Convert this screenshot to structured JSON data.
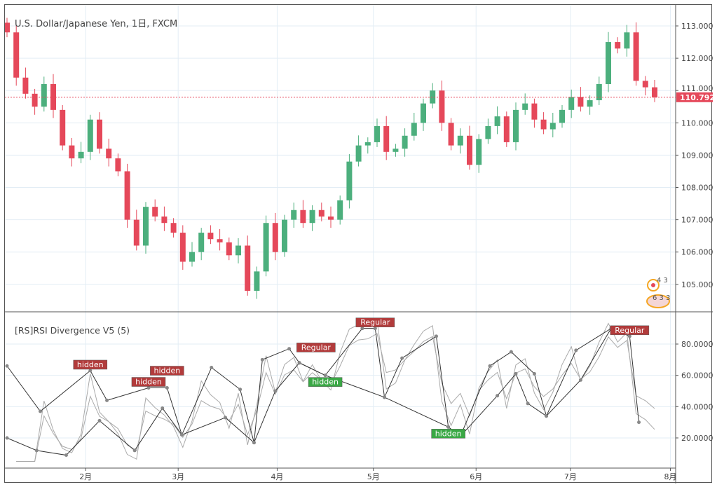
{
  "header": {
    "title": "U.S. Dollar/Japanese Yen, 1日, FXCM"
  },
  "indicator": {
    "title": "[RS]RSI Divergence V5 (5)"
  },
  "price_axis": {
    "ticks": [
      "113.000",
      "112.000",
      "111.000",
      "110.000",
      "109.000",
      "108.000",
      "107.000",
      "106.000",
      "105.000"
    ],
    "tick_values": [
      113,
      112,
      111,
      110,
      109,
      108,
      107,
      106,
      105
    ],
    "last_price": "110.792",
    "last_value": 110.792
  },
  "rsi_axis": {
    "ticks": [
      "80.0000",
      "60.0000",
      "40.0000",
      "20.0000"
    ],
    "tick_values": [
      80,
      60,
      40,
      20
    ]
  },
  "time_axis": {
    "labels": [
      "2月",
      "3月",
      "4月",
      "5月",
      "6月",
      "7月",
      "8月"
    ],
    "bar_index": [
      8.5,
      18.5,
      29.2,
      39.6,
      50.7,
      60.9,
      71.7
    ]
  },
  "events_badge": {
    "count_top": "4 3",
    "count_bottom": "6 3 3"
  },
  "colors": {
    "up": "#4caf7d",
    "down": "#e5485a",
    "price_line": "#e5485a",
    "rsi": "#aaaaaa",
    "div": "#333333",
    "regular": "#b23b3b",
    "hidden_bull": "#3aa845"
  },
  "chart_data": {
    "type": "candlestick",
    "first_open": 113.1,
    "closes": [
      112.8,
      111.4,
      110.9,
      110.5,
      111.2,
      110.4,
      109.3,
      108.9,
      109.1,
      110.1,
      109.2,
      108.9,
      108.5,
      107.0,
      106.2,
      107.4,
      107.1,
      106.9,
      106.6,
      105.7,
      106.0,
      106.6,
      106.4,
      106.3,
      105.9,
      106.2,
      104.8,
      105.4,
      106.9,
      106.0,
      107.0,
      107.3,
      106.9,
      107.3,
      107.1,
      107.0,
      107.6,
      108.8,
      109.3,
      109.4,
      109.9,
      109.1,
      109.2,
      109.6,
      110.0,
      110.6,
      111.0,
      110.0,
      109.3,
      109.6,
      108.7,
      109.5,
      109.9,
      110.2,
      109.4,
      110.4,
      110.6,
      110.1,
      109.8,
      110.0,
      110.4,
      110.8,
      110.5,
      110.7,
      111.2,
      112.5,
      112.3,
      112.8,
      111.3,
      111.1,
      110.79
    ],
    "ylim": [
      104.3,
      113.3
    ],
    "rsi_ylim": [
      2,
      97
    ],
    "divergence_lines": [
      [
        [
          0,
          66
        ],
        [
          3.6,
          37
        ],
        [
          9,
          63
        ],
        [
          10.8,
          44
        ],
        [
          15.3,
          52
        ],
        [
          17.3,
          52
        ],
        [
          18.9,
          22
        ],
        [
          22.1,
          65
        ],
        [
          25.2,
          51
        ],
        [
          26.7,
          17
        ],
        [
          27.6,
          70
        ],
        [
          30.5,
          77
        ],
        [
          31.6,
          68
        ],
        [
          34.4,
          60
        ],
        [
          38.4,
          90
        ],
        [
          39.8,
          90
        ],
        [
          40.8,
          46
        ],
        [
          42.7,
          71
        ],
        [
          46.4,
          85
        ],
        [
          47.7,
          27
        ],
        [
          49,
          21
        ],
        [
          52.2,
          66
        ],
        [
          54.5,
          75
        ],
        [
          57,
          61
        ],
        [
          58.3,
          34
        ],
        [
          61.5,
          76
        ],
        [
          65.3,
          90
        ],
        [
          67.3,
          85
        ],
        [
          68.3,
          30
        ]
      ],
      [
        [
          0,
          20
        ],
        [
          3.2,
          12
        ],
        [
          6.4,
          9
        ],
        [
          10,
          31
        ],
        [
          13.8,
          12
        ],
        [
          16.8,
          39
        ],
        [
          18.9,
          22
        ],
        [
          23.6,
          33
        ],
        [
          26.7,
          17
        ],
        [
          29,
          50
        ],
        [
          31.6,
          68
        ],
        [
          34.4,
          60
        ],
        [
          40.8,
          46
        ],
        [
          47.7,
          27
        ],
        [
          49,
          21
        ],
        [
          53,
          47
        ],
        [
          55,
          61
        ],
        [
          56.3,
          42
        ],
        [
          58.3,
          34
        ],
        [
          62,
          57
        ],
        [
          65.3,
          90
        ]
      ]
    ],
    "labels": [
      {
        "text": "hidden",
        "x": 9,
        "y": 63,
        "kind": "regular"
      },
      {
        "text": "hidden",
        "x": 15.3,
        "y": 52,
        "kind": "regular"
      },
      {
        "text": "hidden",
        "x": 17.3,
        "y": 52,
        "kind": "regular"
      },
      {
        "text": "Regular",
        "x": 33.4,
        "y": 74,
        "kind": "regular"
      },
      {
        "text": "hidden",
        "x": 34.4,
        "y": 60,
        "kind": "bull"
      },
      {
        "text": "Regular",
        "x": 39.8,
        "y": 90,
        "kind": "regular"
      },
      {
        "text": "hidden",
        "x": 47.7,
        "y": 27,
        "kind": "bull"
      },
      {
        "text": "Regular",
        "x": 67.3,
        "y": 85,
        "kind": "regular"
      }
    ]
  }
}
